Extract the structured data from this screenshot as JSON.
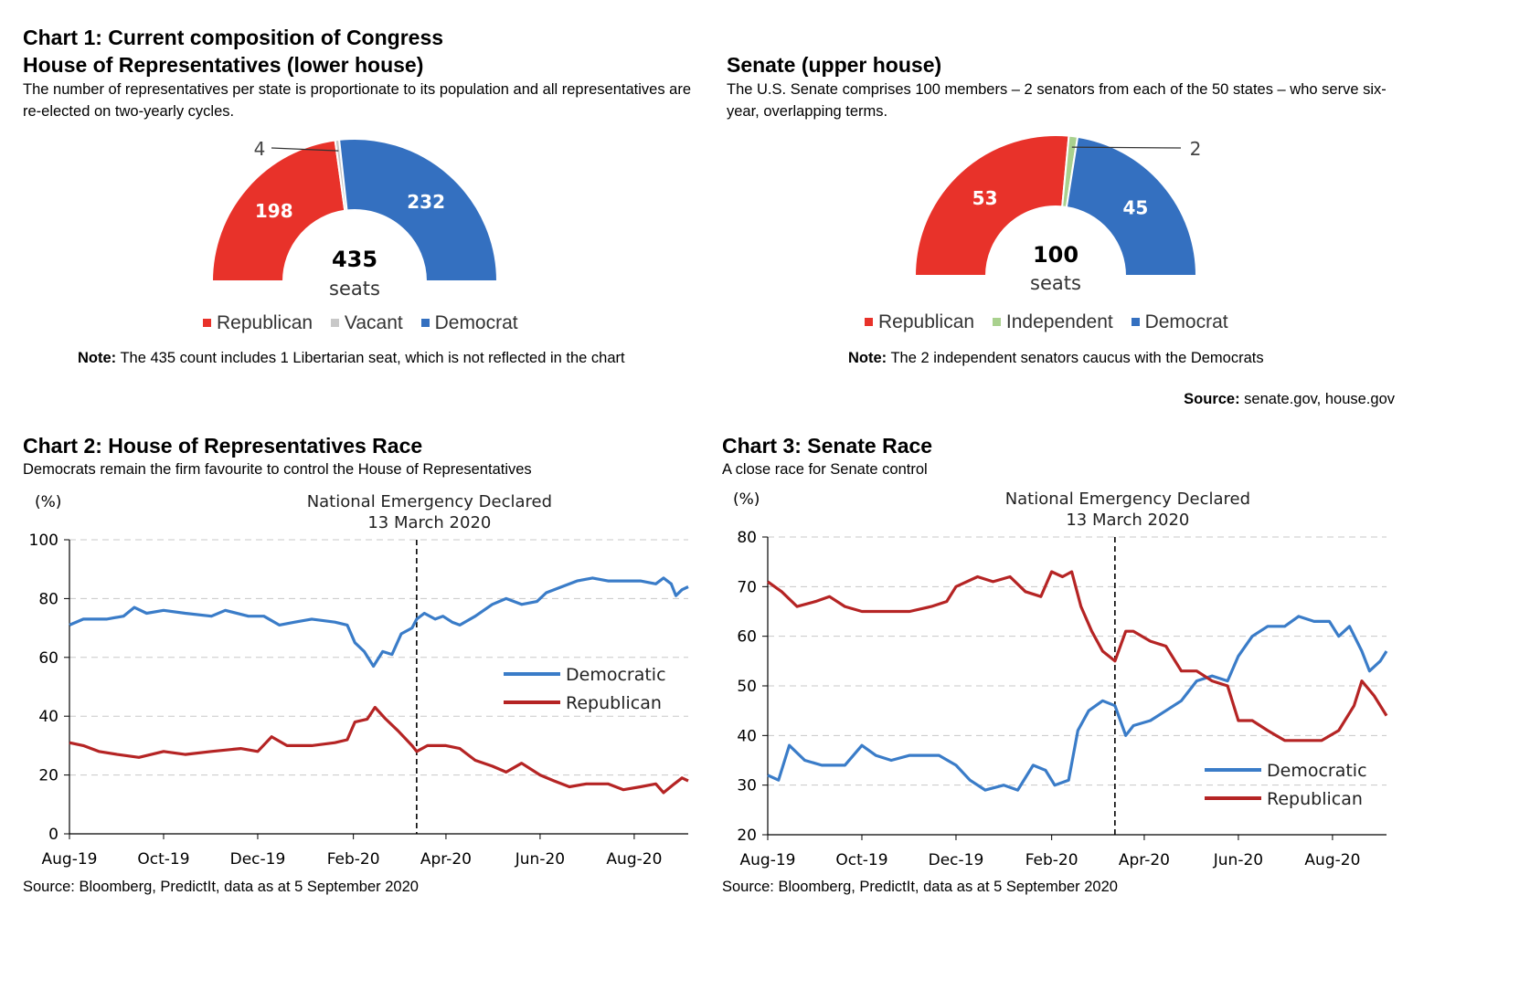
{
  "colors": {
    "republican": "#E8322A",
    "democrat": "#3470C0",
    "vacant": "#C8C8C8",
    "independent": "#A9D18E",
    "dem_line": "#3A7CC8",
    "rep_line": "#B52424"
  },
  "chart1": {
    "title": "Chart 1: Current composition of Congress",
    "house": {
      "heading": "House of Representatives (lower house)",
      "description": "The number of representatives per state is proportionate to its population and all representatives are re-elected on two-yearly cycles.",
      "total": "435",
      "total_unit": "seats",
      "legend": [
        {
          "label": "Republican",
          "color": "#E8322A"
        },
        {
          "label": "Vacant",
          "color": "#C8C8C8"
        },
        {
          "label": "Democrat",
          "color": "#3470C0"
        }
      ],
      "note_label": "Note:",
      "note_text": " The 435 count includes 1 Libertarian seat, which is not reflected in the chart"
    },
    "senate": {
      "heading": "Senate (upper house)",
      "description": "The U.S. Senate comprises 100 members – 2 senators from each of the 50 states – who serve six-year, overlapping terms.",
      "total": "100",
      "total_unit": "seats",
      "legend": [
        {
          "label": "Republican",
          "color": "#E8322A"
        },
        {
          "label": "Independent",
          "color": "#A9D18E"
        },
        {
          "label": "Democrat",
          "color": "#3470C0"
        }
      ],
      "note_label": "Note:",
      "note_text": " The 2 independent senators caucus with the Democrats"
    },
    "source_label": "Source:",
    "source_text": " senate.gov, house.gov"
  },
  "chart2": {
    "title": "Chart 2: House of Representatives Race",
    "subtitle": "Democrats remain the firm favourite to control the House of Representatives",
    "source": "Source: Bloomberg, PredictIt, data as at 5 September 2020"
  },
  "chart3": {
    "title": "Chart 3: Senate Race",
    "subtitle": "A close race for Senate control",
    "source": "Source: Bloomberg, PredictIt, data as at 5 September 2020"
  },
  "chart_data": [
    {
      "type": "pie",
      "chart": "House of Representatives (lower house)",
      "categories": [
        "Republican",
        "Vacant",
        "Democrat"
      ],
      "values": [
        198,
        4,
        232
      ],
      "labels": [
        "198",
        "4",
        "232"
      ]
    },
    {
      "type": "pie",
      "chart": "Senate (upper house)",
      "categories": [
        "Republican",
        "Independent",
        "Democrat"
      ],
      "values": [
        53,
        2,
        45
      ],
      "labels": [
        "53",
        "2",
        "45"
      ]
    },
    {
      "type": "line",
      "chart": "Chart 2: House of Representatives Race",
      "ylabel": "(%)",
      "ylim": [
        0,
        100
      ],
      "yticks": [
        0,
        20,
        40,
        60,
        80,
        100
      ],
      "xlim": [
        "2019-08-01",
        "2020-09-05"
      ],
      "xticks": [
        {
          "date": "2019-08-01",
          "label": "Aug-19"
        },
        {
          "date": "2019-10-01",
          "label": "Oct-19"
        },
        {
          "date": "2019-12-01",
          "label": "Dec-19"
        },
        {
          "date": "2020-02-01",
          "label": "Feb-20"
        },
        {
          "date": "2020-04-01",
          "label": "Apr-20"
        },
        {
          "date": "2020-06-01",
          "label": "Jun-20"
        },
        {
          "date": "2020-08-01",
          "label": "Aug-20"
        }
      ],
      "grid": true,
      "legend_position": "right",
      "annotation": {
        "date": "2020-03-13",
        "lines": [
          "National Emergency Declared",
          "13 March 2020"
        ]
      },
      "series": [
        {
          "name": "Democratic",
          "color": "#3A7CC8",
          "points": [
            [
              "2019-08-01",
              71
            ],
            [
              "2019-08-10",
              73
            ],
            [
              "2019-08-25",
              73
            ],
            [
              "2019-09-05",
              74
            ],
            [
              "2019-09-12",
              77
            ],
            [
              "2019-09-20",
              75
            ],
            [
              "2019-10-01",
              76
            ],
            [
              "2019-10-15",
              75
            ],
            [
              "2019-11-01",
              74
            ],
            [
              "2019-11-10",
              76
            ],
            [
              "2019-11-25",
              74
            ],
            [
              "2019-12-05",
              74
            ],
            [
              "2019-12-15",
              71
            ],
            [
              "2019-12-25",
              72
            ],
            [
              "2020-01-05",
              73
            ],
            [
              "2020-01-20",
              72
            ],
            [
              "2020-01-28",
              71
            ],
            [
              "2020-02-02",
              65
            ],
            [
              "2020-02-08",
              62
            ],
            [
              "2020-02-14",
              57
            ],
            [
              "2020-02-20",
              62
            ],
            [
              "2020-02-26",
              61
            ],
            [
              "2020-03-03",
              68
            ],
            [
              "2020-03-10",
              70
            ],
            [
              "2020-03-13",
              73
            ],
            [
              "2020-03-18",
              75
            ],
            [
              "2020-03-25",
              73
            ],
            [
              "2020-03-30",
              74
            ],
            [
              "2020-04-05",
              72
            ],
            [
              "2020-04-10",
              71
            ],
            [
              "2020-04-20",
              74
            ],
            [
              "2020-05-01",
              78
            ],
            [
              "2020-05-10",
              80
            ],
            [
              "2020-05-20",
              78
            ],
            [
              "2020-05-30",
              79
            ],
            [
              "2020-06-05",
              82
            ],
            [
              "2020-06-15",
              84
            ],
            [
              "2020-06-25",
              86
            ],
            [
              "2020-07-05",
              87
            ],
            [
              "2020-07-15",
              86
            ],
            [
              "2020-07-25",
              86
            ],
            [
              "2020-08-05",
              86
            ],
            [
              "2020-08-15",
              85
            ],
            [
              "2020-08-20",
              87
            ],
            [
              "2020-08-25",
              85
            ],
            [
              "2020-08-28",
              81
            ],
            [
              "2020-09-01",
              83
            ],
            [
              "2020-09-05",
              84
            ]
          ]
        },
        {
          "name": "Republican",
          "color": "#B52424",
          "points": [
            [
              "2019-08-01",
              31
            ],
            [
              "2019-08-10",
              30
            ],
            [
              "2019-08-20",
              28
            ],
            [
              "2019-09-01",
              27
            ],
            [
              "2019-09-15",
              26
            ],
            [
              "2019-10-01",
              28
            ],
            [
              "2019-10-15",
              27
            ],
            [
              "2019-11-01",
              28
            ],
            [
              "2019-11-20",
              29
            ],
            [
              "2019-12-01",
              28
            ],
            [
              "2019-12-10",
              33
            ],
            [
              "2019-12-20",
              30
            ],
            [
              "2020-01-05",
              30
            ],
            [
              "2020-01-20",
              31
            ],
            [
              "2020-01-28",
              32
            ],
            [
              "2020-02-02",
              38
            ],
            [
              "2020-02-10",
              39
            ],
            [
              "2020-02-15",
              43
            ],
            [
              "2020-02-22",
              39
            ],
            [
              "2020-03-01",
              35
            ],
            [
              "2020-03-10",
              30
            ],
            [
              "2020-03-13",
              28
            ],
            [
              "2020-03-20",
              30
            ],
            [
              "2020-04-01",
              30
            ],
            [
              "2020-04-10",
              29
            ],
            [
              "2020-04-20",
              25
            ],
            [
              "2020-05-01",
              23
            ],
            [
              "2020-05-10",
              21
            ],
            [
              "2020-05-20",
              24
            ],
            [
              "2020-06-01",
              20
            ],
            [
              "2020-06-10",
              18
            ],
            [
              "2020-06-20",
              16
            ],
            [
              "2020-07-01",
              17
            ],
            [
              "2020-07-15",
              17
            ],
            [
              "2020-07-25",
              15
            ],
            [
              "2020-08-05",
              16
            ],
            [
              "2020-08-15",
              17
            ],
            [
              "2020-08-20",
              14
            ],
            [
              "2020-08-27",
              17
            ],
            [
              "2020-09-01",
              19
            ],
            [
              "2020-09-05",
              18
            ]
          ]
        }
      ]
    },
    {
      "type": "line",
      "chart": "Chart 3: Senate Race",
      "ylabel": "(%)",
      "ylim": [
        20,
        80
      ],
      "yticks": [
        20,
        30,
        40,
        50,
        60,
        70,
        80
      ],
      "xlim": [
        "2019-08-01",
        "2020-09-05"
      ],
      "xticks": [
        {
          "date": "2019-08-01",
          "label": "Aug-19"
        },
        {
          "date": "2019-10-01",
          "label": "Oct-19"
        },
        {
          "date": "2019-12-01",
          "label": "Dec-19"
        },
        {
          "date": "2020-02-01",
          "label": "Feb-20"
        },
        {
          "date": "2020-04-01",
          "label": "Apr-20"
        },
        {
          "date": "2020-06-01",
          "label": "Jun-20"
        },
        {
          "date": "2020-08-01",
          "label": "Aug-20"
        }
      ],
      "grid": true,
      "legend_position": "bottom-right",
      "annotation": {
        "date": "2020-03-13",
        "lines": [
          "National Emergency Declared",
          "13 March 2020"
        ]
      },
      "series": [
        {
          "name": "Democratic",
          "color": "#3A7CC8",
          "points": [
            [
              "2019-08-01",
              32
            ],
            [
              "2019-08-08",
              31
            ],
            [
              "2019-08-15",
              38
            ],
            [
              "2019-08-25",
              35
            ],
            [
              "2019-09-05",
              34
            ],
            [
              "2019-09-20",
              34
            ],
            [
              "2019-10-01",
              38
            ],
            [
              "2019-10-10",
              36
            ],
            [
              "2019-10-20",
              35
            ],
            [
              "2019-11-01",
              36
            ],
            [
              "2019-11-20",
              36
            ],
            [
              "2019-12-01",
              34
            ],
            [
              "2019-12-10",
              31
            ],
            [
              "2019-12-20",
              29
            ],
            [
              "2020-01-01",
              30
            ],
            [
              "2020-01-10",
              29
            ],
            [
              "2020-01-20",
              34
            ],
            [
              "2020-01-28",
              33
            ],
            [
              "2020-02-03",
              30
            ],
            [
              "2020-02-12",
              31
            ],
            [
              "2020-02-18",
              41
            ],
            [
              "2020-02-25",
              45
            ],
            [
              "2020-03-05",
              47
            ],
            [
              "2020-03-13",
              46
            ],
            [
              "2020-03-20",
              40
            ],
            [
              "2020-03-25",
              42
            ],
            [
              "2020-04-05",
              43
            ],
            [
              "2020-04-15",
              45
            ],
            [
              "2020-04-25",
              47
            ],
            [
              "2020-05-05",
              51
            ],
            [
              "2020-05-15",
              52
            ],
            [
              "2020-05-25",
              51
            ],
            [
              "2020-06-01",
              56
            ],
            [
              "2020-06-10",
              60
            ],
            [
              "2020-06-20",
              62
            ],
            [
              "2020-07-01",
              62
            ],
            [
              "2020-07-10",
              64
            ],
            [
              "2020-07-20",
              63
            ],
            [
              "2020-07-30",
              63
            ],
            [
              "2020-08-05",
              60
            ],
            [
              "2020-08-12",
              62
            ],
            [
              "2020-08-20",
              57
            ],
            [
              "2020-08-25",
              53
            ],
            [
              "2020-09-01",
              55
            ],
            [
              "2020-09-05",
              57
            ]
          ]
        },
        {
          "name": "Republican",
          "color": "#B52424",
          "points": [
            [
              "2019-08-01",
              71
            ],
            [
              "2019-08-10",
              69
            ],
            [
              "2019-08-20",
              66
            ],
            [
              "2019-09-01",
              67
            ],
            [
              "2019-09-10",
              68
            ],
            [
              "2019-09-20",
              66
            ],
            [
              "2019-10-01",
              65
            ],
            [
              "2019-10-15",
              65
            ],
            [
              "2019-11-01",
              65
            ],
            [
              "2019-11-15",
              66
            ],
            [
              "2019-11-25",
              67
            ],
            [
              "2019-12-01",
              70
            ],
            [
              "2019-12-15",
              72
            ],
            [
              "2019-12-25",
              71
            ],
            [
              "2020-01-05",
              72
            ],
            [
              "2020-01-15",
              69
            ],
            [
              "2020-01-25",
              68
            ],
            [
              "2020-02-01",
              73
            ],
            [
              "2020-02-08",
              72
            ],
            [
              "2020-02-14",
              73
            ],
            [
              "2020-02-20",
              66
            ],
            [
              "2020-02-27",
              61
            ],
            [
              "2020-03-05",
              57
            ],
            [
              "2020-03-13",
              55
            ],
            [
              "2020-03-20",
              61
            ],
            [
              "2020-03-25",
              61
            ],
            [
              "2020-04-05",
              59
            ],
            [
              "2020-04-15",
              58
            ],
            [
              "2020-04-25",
              53
            ],
            [
              "2020-05-05",
              53
            ],
            [
              "2020-05-15",
              51
            ],
            [
              "2020-05-25",
              50
            ],
            [
              "2020-06-01",
              43
            ],
            [
              "2020-06-10",
              43
            ],
            [
              "2020-06-20",
              41
            ],
            [
              "2020-07-01",
              39
            ],
            [
              "2020-07-15",
              39
            ],
            [
              "2020-07-25",
              39
            ],
            [
              "2020-08-05",
              41
            ],
            [
              "2020-08-15",
              46
            ],
            [
              "2020-08-20",
              51
            ],
            [
              "2020-08-28",
              48
            ],
            [
              "2020-09-05",
              44
            ]
          ]
        }
      ]
    }
  ]
}
